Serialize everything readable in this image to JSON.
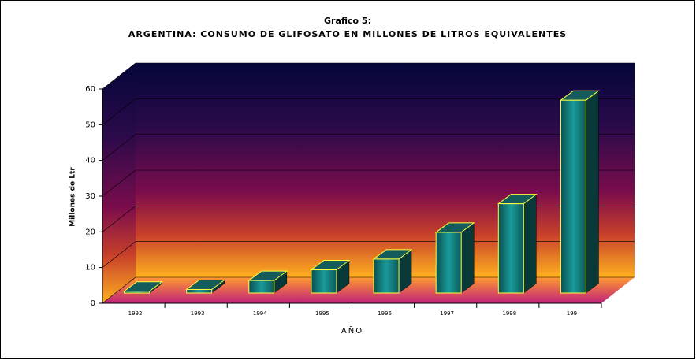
{
  "chart_data": {
    "type": "bar",
    "title": "Grafico 5:",
    "subtitle": "ARGENTINA: CONSUMO DE GLIFOSATO EN MILLONES DE LITROS EQUIVALENTES",
    "x_label": "AÑO",
    "y_label": "Millones de Ltr",
    "categories": [
      "1992",
      "1993",
      "1994",
      "1995",
      "1996",
      "1997",
      "1998",
      "199"
    ],
    "values": [
      0.5,
      1,
      3.5,
      6.5,
      9.5,
      17,
      25,
      54
    ],
    "color": "#138080",
    "ylim": [
      0,
      60
    ],
    "yticks": [
      0,
      10,
      20,
      30,
      40,
      50,
      60
    ],
    "grid": true
  }
}
